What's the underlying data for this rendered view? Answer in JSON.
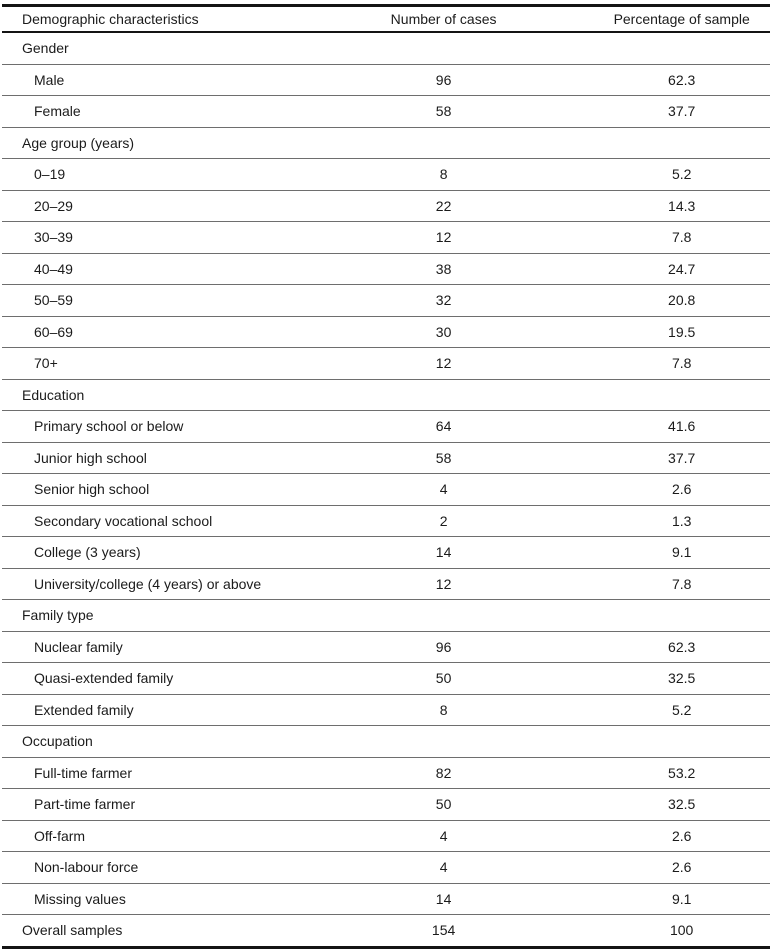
{
  "table": {
    "columns": [
      "Demographic characteristics",
      "Number of cases",
      "Percentage of sample"
    ],
    "rules": {
      "top_rule_color": "#141414",
      "row_rule_color": "#6e6e6e"
    },
    "rows": [
      {
        "type": "section",
        "label": "Gender",
        "cases": "",
        "pct": ""
      },
      {
        "type": "item",
        "label": "Male",
        "cases": "96",
        "pct": "62.3"
      },
      {
        "type": "item",
        "label": "Female",
        "cases": "58",
        "pct": "37.7"
      },
      {
        "type": "section",
        "label": "Age group (years)",
        "cases": "",
        "pct": ""
      },
      {
        "type": "item",
        "label": "0–19",
        "cases": "8",
        "pct": "5.2"
      },
      {
        "type": "item",
        "label": "20–29",
        "cases": "22",
        "pct": "14.3"
      },
      {
        "type": "item",
        "label": "30–39",
        "cases": "12",
        "pct": "7.8"
      },
      {
        "type": "item",
        "label": "40–49",
        "cases": "38",
        "pct": "24.7"
      },
      {
        "type": "item",
        "label": "50–59",
        "cases": "32",
        "pct": "20.8"
      },
      {
        "type": "item",
        "label": "60–69",
        "cases": "30",
        "pct": "19.5"
      },
      {
        "type": "item",
        "label": "70+",
        "cases": "12",
        "pct": "7.8"
      },
      {
        "type": "section",
        "label": "Education",
        "cases": "",
        "pct": ""
      },
      {
        "type": "item",
        "label": "Primary school or below",
        "cases": "64",
        "pct": "41.6"
      },
      {
        "type": "item",
        "label": "Junior high school",
        "cases": "58",
        "pct": "37.7"
      },
      {
        "type": "item",
        "label": "Senior high school",
        "cases": "4",
        "pct": "2.6"
      },
      {
        "type": "item",
        "label": "Secondary vocational school",
        "cases": "2",
        "pct": "1.3"
      },
      {
        "type": "item",
        "label": "College (3 years)",
        "cases": "14",
        "pct": "9.1"
      },
      {
        "type": "item",
        "label": "University/college (4 years) or above",
        "cases": "12",
        "pct": "7.8"
      },
      {
        "type": "section",
        "label": "Family type",
        "cases": "",
        "pct": ""
      },
      {
        "type": "item",
        "label": "Nuclear family",
        "cases": "96",
        "pct": "62.3"
      },
      {
        "type": "item",
        "label": "Quasi-extended family",
        "cases": "50",
        "pct": "32.5"
      },
      {
        "type": "item",
        "label": "Extended family",
        "cases": "8",
        "pct": "5.2"
      },
      {
        "type": "section",
        "label": "Occupation",
        "cases": "",
        "pct": ""
      },
      {
        "type": "item",
        "label": "Full-time farmer",
        "cases": "82",
        "pct": "53.2"
      },
      {
        "type": "item",
        "label": "Part-time farmer",
        "cases": "50",
        "pct": "32.5"
      },
      {
        "type": "item",
        "label": "Off-farm",
        "cases": "4",
        "pct": "2.6"
      },
      {
        "type": "item",
        "label": "Non-labour force",
        "cases": "4",
        "pct": "2.6"
      },
      {
        "type": "item",
        "label": "Missing values",
        "cases": "14",
        "pct": "9.1"
      },
      {
        "type": "footer",
        "label": "Overall samples",
        "cases": "154",
        "pct": "100"
      }
    ]
  }
}
